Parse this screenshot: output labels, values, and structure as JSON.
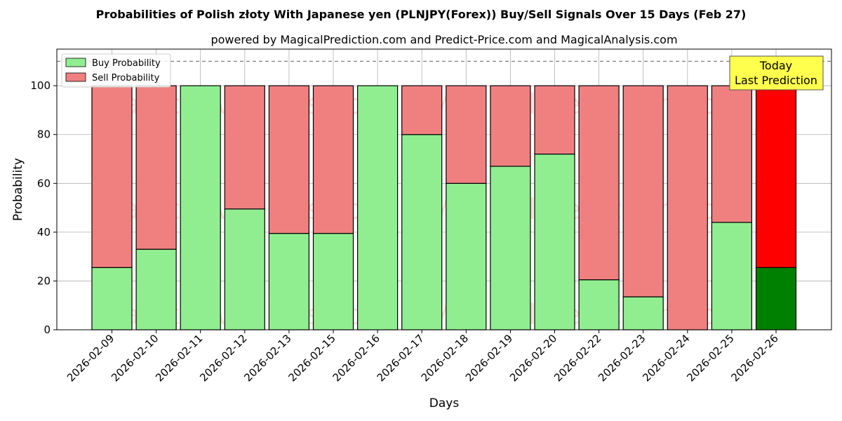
{
  "chart_data": {
    "type": "bar",
    "stacked": true,
    "title": "Probabilities of Polish złoty With Japanese yen (PLNJPY(Forex)) Buy/Sell Signals Over 15 Days (Feb 27)",
    "subtitle": "powered by MagicalPrediction.com and Predict-Price.com and MagicalAnalysis.com",
    "xlabel": "Days",
    "ylabel": "Probability",
    "ylim": [
      0,
      115
    ],
    "yticks": [
      0,
      20,
      40,
      60,
      80,
      100
    ],
    "grid": true,
    "legend_position": "top-left",
    "threshold_line": 110,
    "categories": [
      "2026-02-09",
      "2026-02-10",
      "2026-02-11",
      "2026-02-12",
      "2026-02-13",
      "2026-02-15",
      "2026-02-16",
      "2026-02-17",
      "2026-02-18",
      "2026-02-19",
      "2026-02-20",
      "2026-02-22",
      "2026-02-23",
      "2026-02-24",
      "2026-02-25",
      "2026-02-26"
    ],
    "series": [
      {
        "name": "Buy Probability",
        "color": "#90ee90",
        "values": [
          25.5,
          33,
          100,
          49.5,
          39.5,
          39.5,
          100,
          80,
          60,
          67,
          72,
          20.5,
          13.5,
          0,
          44,
          25.5
        ]
      },
      {
        "name": "Sell Probability",
        "color": "#f08080",
        "values": [
          74.5,
          67,
          0,
          50.5,
          60.5,
          60.5,
          0,
          20,
          40,
          33,
          28,
          79.5,
          86.5,
          100,
          56,
          74.5
        ]
      }
    ],
    "highlight": {
      "index": 15,
      "buy_color": "#008000",
      "sell_color": "#ff0000"
    },
    "annotation": {
      "lines": [
        "Today",
        "Last Prediction"
      ],
      "bg": "#ffff4d"
    },
    "watermark": [
      "MagicalAnalysis.com",
      "MagicalPrediction.com"
    ]
  }
}
